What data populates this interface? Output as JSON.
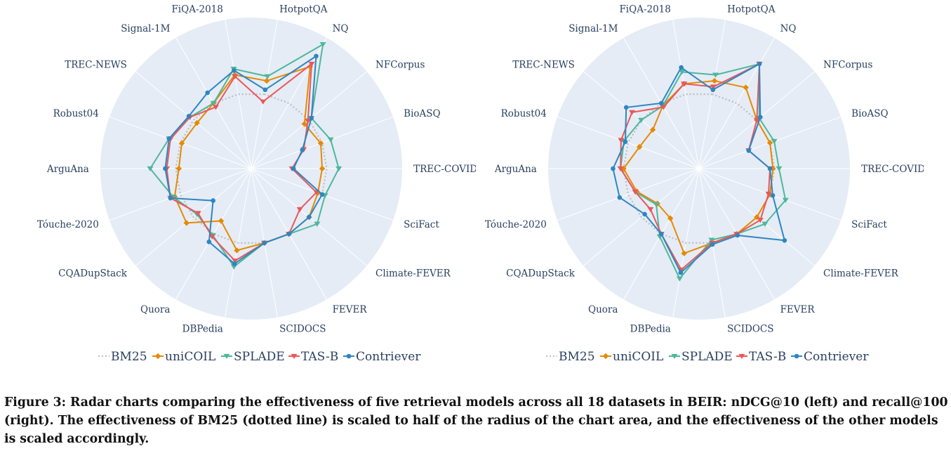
{
  "colors": {
    "background_disc": "#e5ecf6",
    "grid": "#ffffff",
    "label": "#2a3f5f",
    "BM25": "#bdbdbd",
    "uniCOIL": "#e68a00",
    "SPLADE": "#4fb79a",
    "TAS-B": "#e8585a",
    "Contriever": "#2e86c1"
  },
  "chart_data": [
    {
      "type": "radar",
      "title": "",
      "radial_range": [
        0,
        1
      ],
      "categories": [
        "HotpotQA",
        "NQ",
        "NFCorpus",
        "BioASQ",
        "TREC-COVID",
        "SciFact",
        "Climate-FEVER",
        "FEVER",
        "SCIDOCS",
        "DBPedia",
        "Quora",
        "CQADupStack",
        "Tóuche-2020",
        "ArguAna",
        "Robust04",
        "TREC-NEWS",
        "Signal-1M",
        "FiQA-2018"
      ],
      "series": [
        {
          "name": "BM25",
          "marker": "none",
          "dash": "dot",
          "values": [
            0.5,
            0.5,
            0.5,
            0.5,
            0.5,
            0.5,
            0.5,
            0.5,
            0.5,
            0.5,
            0.5,
            0.5,
            0.5,
            0.5,
            0.5,
            0.5,
            0.5,
            0.5
          ]
        },
        {
          "name": "uniCOIL",
          "marker": "diamond",
          "values": [
            0.59,
            0.78,
            0.46,
            0.49,
            0.47,
            0.47,
            0.5,
            0.5,
            0.5,
            0.55,
            0.4,
            0.56,
            0.54,
            0.48,
            0.49,
            0.47,
            0.5,
            0.63
          ]
        },
        {
          "name": "SPLADE",
          "marker": "triangle-down",
          "values": [
            0.62,
            0.95,
            0.52,
            0.56,
            0.58,
            0.52,
            0.57,
            0.5,
            0.5,
            0.66,
            0.51,
            0.47,
            0.55,
            0.67,
            0.58,
            0.53,
            0.5,
            0.67
          ]
        },
        {
          "name": "TAS-B",
          "marker": "triangle-down",
          "values": [
            0.45,
            0.8,
            0.49,
            0.37,
            0.27,
            0.46,
            0.42,
            0.5,
            0.5,
            0.62,
            0.52,
            0.46,
            0.57,
            0.56,
            0.57,
            0.53,
            0.47,
            0.62
          ]
        },
        {
          "name": "Contriever",
          "marker": "circle",
          "values": [
            0.53,
            0.86,
            0.52,
            0.36,
            0.28,
            0.5,
            0.5,
            0.5,
            0.5,
            0.64,
            0.56,
            0.33,
            0.57,
            0.57,
            0.58,
            0.54,
            0.58,
            0.66
          ]
        }
      ]
    },
    {
      "type": "radar",
      "title": "",
      "radial_range": [
        0,
        1
      ],
      "categories": [
        "HotpotQA",
        "NQ",
        "NFCorpus",
        "BioASQ",
        "TREC-COVID",
        "SciFact",
        "Climate-FEVER",
        "FEVER",
        "SCIDOCS",
        "DBPedia",
        "Quora",
        "CQADupStack",
        "Tóuche-2020",
        "ArguAna",
        "Robust04",
        "TREC-NEWS",
        "Signal-1M",
        "FiQA-2018"
      ],
      "series": [
        {
          "name": "BM25",
          "marker": "none",
          "dash": "dot",
          "values": [
            0.5,
            0.5,
            0.5,
            0.5,
            0.5,
            0.5,
            0.5,
            0.5,
            0.5,
            0.5,
            0.5,
            0.5,
            0.5,
            0.5,
            0.5,
            0.5,
            0.5,
            0.5
          ]
        },
        {
          "name": "uniCOIL",
          "marker": "diamond",
          "values": [
            0.59,
            0.62,
            0.5,
            0.5,
            0.49,
            0.5,
            0.5,
            0.5,
            0.5,
            0.57,
            0.38,
            0.36,
            0.44,
            0.5,
            0.42,
            0.4,
            0.48,
            0.57
          ]
        },
        {
          "name": "SPLADE",
          "marker": "triangle-down",
          "values": [
            0.63,
            0.8,
            0.52,
            0.53,
            0.53,
            0.61,
            0.57,
            0.5,
            0.48,
            0.74,
            0.52,
            0.37,
            0.45,
            0.52,
            0.53,
            0.5,
            0.48,
            0.65
          ]
        },
        {
          "name": "TAS-B",
          "marker": "triangle-down",
          "values": [
            0.55,
            0.8,
            0.5,
            0.35,
            0.47,
            0.49,
            0.53,
            0.5,
            0.5,
            0.68,
            0.5,
            0.42,
            0.45,
            0.52,
            0.55,
            0.58,
            0.47,
            0.57
          ]
        },
        {
          "name": "Contriever",
          "marker": "circle",
          "values": [
            0.53,
            0.8,
            0.53,
            0.35,
            0.47,
            0.52,
            0.74,
            0.51,
            0.51,
            0.7,
            0.5,
            0.47,
            0.56,
            0.57,
            0.52,
            0.63,
            0.5,
            0.68
          ]
        }
      ]
    }
  ],
  "legend_order": [
    "BM25",
    "uniCOIL",
    "SPLADE",
    "TAS-B",
    "Contriever"
  ],
  "caption": "Figure 3: Radar charts comparing the effectiveness of five retrieval models across all 18 datasets in BEIR: nDCG@10 (left) and recall@100 (right). The effectiveness of BM25 (dotted line) is scaled to half of the radius of the chart area, and the effectiveness of the other models is scaled accordingly."
}
